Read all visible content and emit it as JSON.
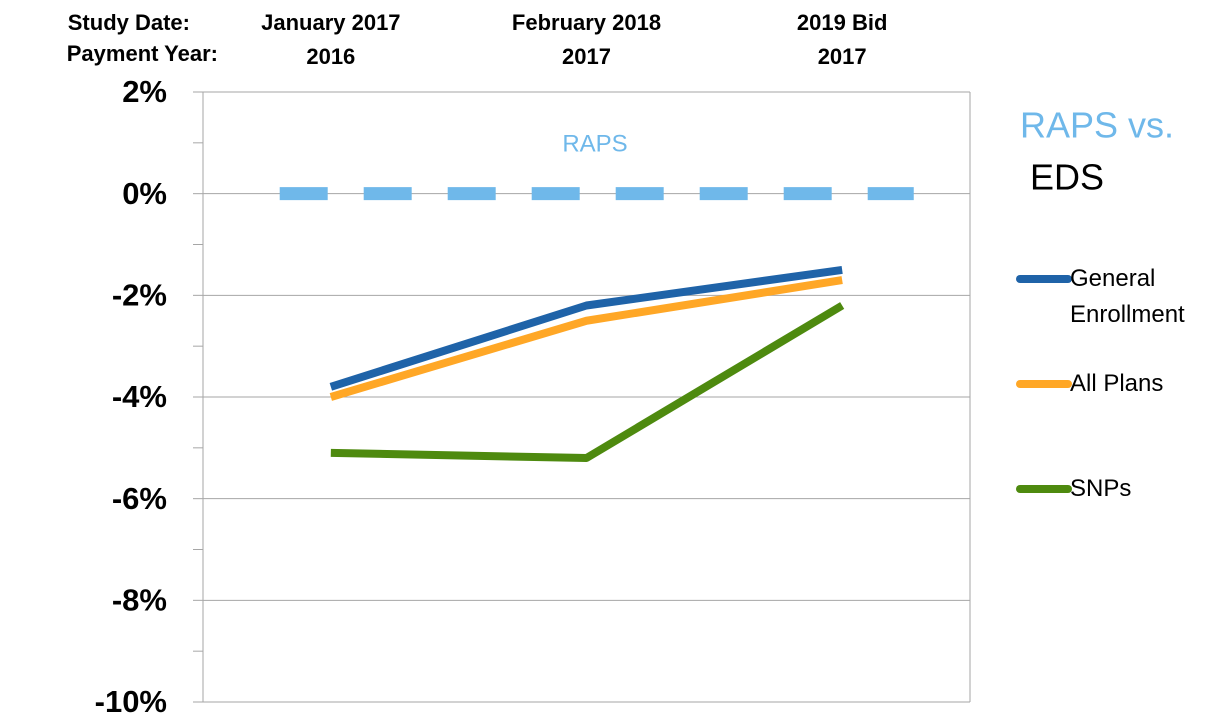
{
  "chart_data": {
    "type": "line",
    "row_headers": [
      "Study Date:",
      "Payment Year:"
    ],
    "categories": [
      "January 2017",
      "February 2018",
      "2019 Bid"
    ],
    "payment_years": [
      "2016",
      "2017",
      "2017"
    ],
    "annotation": "RAPS",
    "legend_title": [
      "RAPS vs.",
      "EDS"
    ],
    "reference": {
      "name": "RAPS",
      "value": 0,
      "color": "#6fb8ea",
      "dashed": true
    },
    "series": [
      {
        "name": "General Enrollment",
        "color": "#1f63a8",
        "values": [
          -3.8,
          -2.2,
          -1.5
        ]
      },
      {
        "name": "All Plans",
        "color": "#ffa726",
        "values": [
          -4.0,
          -2.5,
          -1.7
        ]
      },
      {
        "name": "SNPs",
        "color": "#4e8a0f",
        "values": [
          -5.1,
          -5.2,
          -2.2
        ]
      }
    ],
    "ylim": [
      -10,
      2
    ],
    "yticks": [
      {
        "value": -10,
        "label": "-10%"
      },
      {
        "value": -8,
        "label": "-8%"
      },
      {
        "value": -6,
        "label": "-6%"
      },
      {
        "value": -4,
        "label": "-4%"
      },
      {
        "value": -2,
        "label": "-2%"
      },
      {
        "value": 0,
        "label": "0%"
      },
      {
        "value": 2,
        "label": "2%"
      }
    ],
    "yticks_minor": [
      -9,
      -7,
      -5,
      -3,
      -1,
      1
    ],
    "grid": true,
    "legend": "right"
  }
}
